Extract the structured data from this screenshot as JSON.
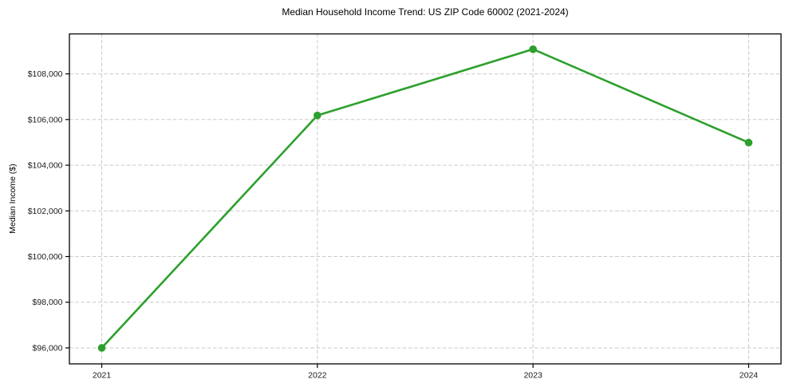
{
  "chart_data": {
    "type": "line",
    "title": "Median Household Income Trend: US ZIP Code 60002 (2021-2024)",
    "xlabel": "",
    "ylabel": "Median Income ($)",
    "x": [
      2021,
      2022,
      2023,
      2024
    ],
    "series": [
      {
        "name": "Median Household Income",
        "values": [
          96000,
          106180,
          109080,
          104990
        ],
        "color": "#2ca02c",
        "marker": "circle",
        "line_width": 2.6,
        "marker_radius": 4.8
      }
    ],
    "xticks": [
      2021,
      2022,
      2023,
      2024
    ],
    "xtick_labels": [
      "2021",
      "2022",
      "2023",
      "2024"
    ],
    "yticks": [
      96000,
      98000,
      100000,
      102000,
      104000,
      106000,
      108000
    ],
    "ytick_labels": [
      "$96,000",
      "$98,000",
      "$100,000",
      "$102,000",
      "$104,000",
      "$106,000",
      "$108,000"
    ],
    "xlim": [
      2020.85,
      2024.15
    ],
    "ylim": [
      95300,
      109750
    ],
    "grid": true,
    "grid_style": "dashed",
    "legend": "none",
    "colors": {
      "background": "#ffffff",
      "text": "#1a1a1a",
      "grid": "#c9c9c9",
      "spine": "#000000",
      "accent": "#2ca02c"
    }
  }
}
